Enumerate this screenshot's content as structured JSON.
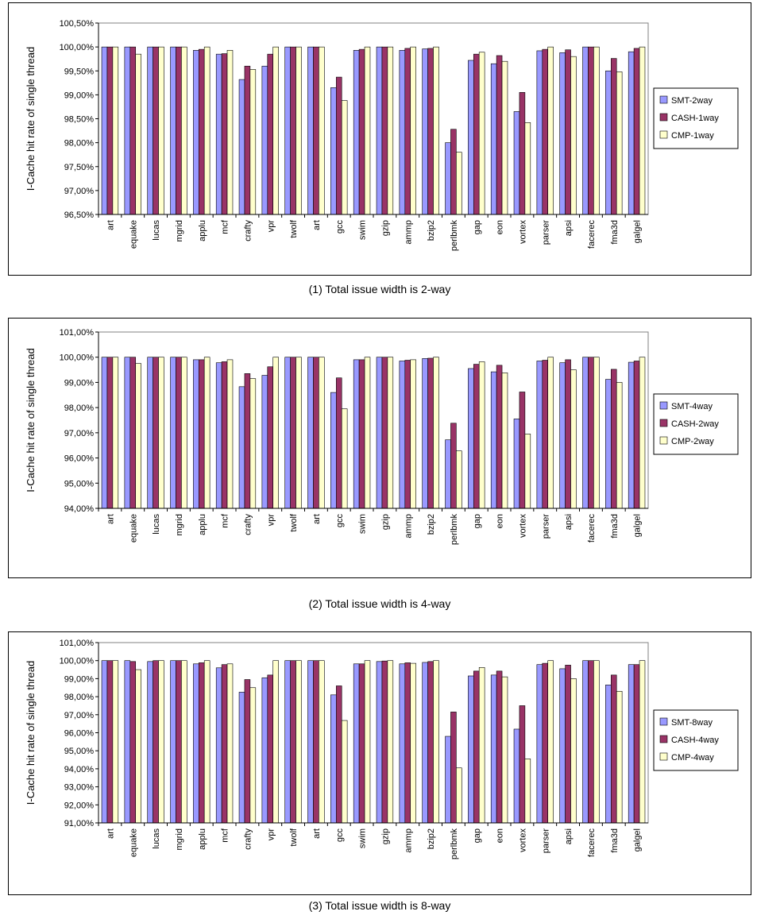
{
  "colors": {
    "SMT": "#9999FF",
    "CASH": "#993366",
    "CMP": "#FFFFCC",
    "bar_stroke": "#000000",
    "plot_bg": "#ffffff"
  },
  "chart_data": [
    {
      "type": "bar",
      "title": "",
      "caption": "(1) Total issue width is 2-way",
      "ylabel": "I-Cache hit rate of single thread",
      "xlabel": "",
      "ylim": [
        96.5,
        100.5
      ],
      "yticks": [
        96.5,
        97.0,
        97.5,
        98.0,
        98.5,
        99.0,
        99.5,
        100.0,
        100.5
      ],
      "ytick_labels": [
        "96,50%",
        "97,00%",
        "97,50%",
        "98,00%",
        "98,50%",
        "99,00%",
        "99,50%",
        "100,00%",
        "100,50%"
      ],
      "grid": false,
      "legend_position": "right",
      "categories": [
        "art",
        "equake",
        "lucas",
        "mgrid",
        "applu",
        "mcf",
        "crafty",
        "vpr",
        "twolf",
        "art",
        "gcc",
        "swim",
        "gzip",
        "ammp",
        "bzip2",
        "perlbmk",
        "gap",
        "eon",
        "vortex",
        "parser",
        "apsi",
        "facerec",
        "fma3d",
        "galgel"
      ],
      "series": [
        {
          "name": "SMT-2way",
          "values": [
            100.0,
            100.0,
            100.0,
            100.0,
            99.93,
            99.85,
            99.32,
            99.6,
            100.0,
            100.0,
            99.15,
            99.93,
            100.0,
            99.93,
            99.96,
            98.0,
            99.72,
            99.65,
            98.65,
            99.92,
            99.88,
            100.0,
            99.5,
            99.9
          ]
        },
        {
          "name": "CASH-1way",
          "values": [
            100.0,
            100.0,
            100.0,
            100.0,
            99.95,
            99.86,
            99.6,
            99.85,
            100.0,
            100.0,
            99.37,
            99.95,
            100.0,
            99.97,
            99.97,
            98.28,
            99.85,
            99.82,
            99.05,
            99.95,
            99.94,
            100.0,
            99.76,
            99.97
          ]
        },
        {
          "name": "CMP-1way",
          "values": [
            100.0,
            99.85,
            100.0,
            100.0,
            100.0,
            99.93,
            99.53,
            100.0,
            100.0,
            100.0,
            98.88,
            100.0,
            100.0,
            100.0,
            100.0,
            97.8,
            99.89,
            99.7,
            98.42,
            100.0,
            99.8,
            100.0,
            99.48,
            100.0
          ]
        }
      ]
    },
    {
      "type": "bar",
      "title": "",
      "caption": "(2) Total issue width is 4-way",
      "ylabel": "I-Cache hit rate of single thread",
      "xlabel": "",
      "ylim": [
        94.0,
        101.0
      ],
      "yticks": [
        94.0,
        95.0,
        96.0,
        97.0,
        98.0,
        99.0,
        100.0,
        101.0
      ],
      "ytick_labels": [
        "94,00%",
        "95,00%",
        "96,00%",
        "97,00%",
        "98,00%",
        "99,00%",
        "100,00%",
        "101,00%"
      ],
      "grid": false,
      "legend_position": "right",
      "categories": [
        "art",
        "equake",
        "lucas",
        "mgrid",
        "applu",
        "mcf",
        "crafty",
        "vpr",
        "twolf",
        "art",
        "gcc",
        "swim",
        "gzip",
        "ammp",
        "bzip2",
        "perlbmk",
        "gap",
        "eon",
        "vortex",
        "parser",
        "apsi",
        "facerec",
        "fma3d",
        "galgel"
      ],
      "series": [
        {
          "name": "SMT-4way",
          "values": [
            100.0,
            100.0,
            100.0,
            100.0,
            99.9,
            99.78,
            98.83,
            99.28,
            100.0,
            100.0,
            98.6,
            99.9,
            100.0,
            99.85,
            99.95,
            96.72,
            99.55,
            99.42,
            97.55,
            99.85,
            99.78,
            100.0,
            99.12,
            99.8
          ]
        },
        {
          "name": "CASH-2way",
          "values": [
            100.0,
            100.0,
            100.0,
            100.0,
            99.9,
            99.82,
            99.35,
            99.62,
            100.0,
            100.0,
            99.18,
            99.9,
            100.0,
            99.88,
            99.96,
            97.38,
            99.72,
            99.68,
            98.62,
            99.88,
            99.9,
            100.0,
            99.52,
            99.85
          ]
        },
        {
          "name": "CMP-2way",
          "values": [
            100.0,
            99.75,
            100.0,
            100.0,
            100.0,
            99.9,
            99.15,
            100.0,
            100.0,
            100.0,
            97.95,
            100.0,
            100.0,
            99.9,
            100.0,
            96.28,
            99.82,
            99.38,
            96.95,
            100.0,
            99.5,
            100.0,
            99.0,
            100.0
          ]
        }
      ]
    },
    {
      "type": "bar",
      "title": "",
      "caption": "(3) Total issue width is 8-way",
      "ylabel": "I-Cache hit rate of single thread",
      "xlabel": "",
      "ylim": [
        91.0,
        101.0
      ],
      "yticks": [
        91.0,
        92.0,
        93.0,
        94.0,
        95.0,
        96.0,
        97.0,
        98.0,
        99.0,
        100.0,
        101.0
      ],
      "ytick_labels": [
        "91,00%",
        "92,00%",
        "93,00%",
        "94,00%",
        "95,00%",
        "96,00%",
        "97,00%",
        "98,00%",
        "99,00%",
        "100,00%",
        "101,00%"
      ],
      "grid": false,
      "legend_position": "right",
      "categories": [
        "art",
        "equake",
        "lucas",
        "mgrid",
        "applu",
        "mcf",
        "crafty",
        "vpr",
        "twolf",
        "art",
        "gcc",
        "swim",
        "gzip",
        "ammp",
        "bzip2",
        "perlbmk",
        "gap",
        "eon",
        "vortex",
        "parser",
        "apsi",
        "facerec",
        "fma3d",
        "galgel"
      ],
      "series": [
        {
          "name": "SMT-8way",
          "values": [
            100.0,
            100.0,
            99.95,
            100.0,
            99.82,
            99.6,
            98.25,
            99.05,
            100.0,
            100.0,
            98.1,
            99.82,
            99.95,
            99.82,
            99.9,
            95.8,
            99.15,
            99.2,
            96.2,
            99.78,
            99.55,
            100.0,
            98.65,
            99.78
          ]
        },
        {
          "name": "CASH-4way",
          "values": [
            100.0,
            99.95,
            100.0,
            100.0,
            99.88,
            99.78,
            98.95,
            99.2,
            100.0,
            100.0,
            98.6,
            99.82,
            99.98,
            99.88,
            99.95,
            97.15,
            99.42,
            99.42,
            97.5,
            99.85,
            99.75,
            100.0,
            99.2,
            99.78
          ]
        },
        {
          "name": "CMP-4way",
          "values": [
            100.0,
            99.5,
            100.0,
            100.0,
            100.0,
            99.82,
            98.5,
            100.0,
            100.0,
            100.0,
            96.68,
            100.0,
            100.0,
            99.85,
            100.0,
            94.05,
            99.62,
            99.1,
            94.55,
            100.0,
            99.0,
            100.0,
            98.3,
            100.0
          ]
        }
      ]
    }
  ]
}
